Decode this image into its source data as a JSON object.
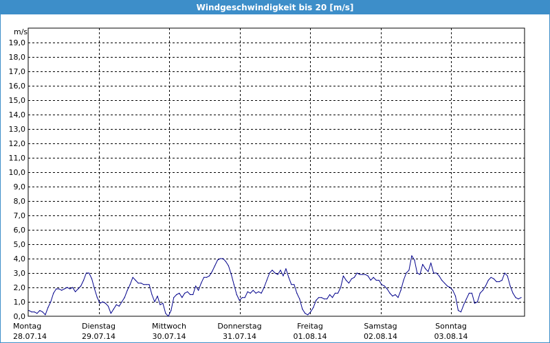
{
  "chart_data": {
    "type": "line",
    "title": "Windgeschwindigkeit bis 20 [m/s]",
    "ylabel": "m/s",
    "ylim": [
      0,
      20
    ],
    "y_ticks": [
      "0,0",
      "1,0",
      "2,0",
      "3,0",
      "4,0",
      "5,0",
      "6,0",
      "7,0",
      "8,0",
      "9,0",
      "10,0",
      "11,0",
      "12,0",
      "13,0",
      "14,0",
      "15,0",
      "16,0",
      "17,0",
      "18,0",
      "19,0"
    ],
    "x_ticks": [
      {
        "day": "Montag",
        "date": "28.07.14"
      },
      {
        "day": "Dienstag",
        "date": "29.07.14"
      },
      {
        "day": "Mittwoch",
        "date": "30.07.14"
      },
      {
        "day": "Donnerstag",
        "date": "31.07.14"
      },
      {
        "day": "Freitag",
        "date": "01.08.14"
      },
      {
        "day": "Samstag",
        "date": "02.08.14"
      },
      {
        "day": "Sonntag",
        "date": "03.08.14"
      }
    ],
    "grid": true,
    "line_color": "#00008b",
    "series": [
      {
        "values": [
          0.4,
          0.3,
          0.3,
          0.2,
          0.4,
          0.3,
          0.1,
          0.6,
          1.0,
          1.6,
          1.9,
          1.9,
          1.8,
          1.9,
          2.0,
          1.9,
          2.0,
          1.7,
          1.9,
          2.1,
          2.5,
          3.0,
          3.0,
          2.6,
          1.9,
          1.3,
          0.9,
          1.0,
          0.9,
          0.7,
          0.2,
          0.5,
          0.8,
          0.7,
          1.0,
          1.3,
          1.8,
          2.2,
          2.7,
          2.5,
          2.3,
          2.3,
          2.2,
          2.2,
          2.2,
          1.5,
          1.0,
          1.4,
          0.8,
          0.9,
          0.2,
          0.0,
          0.4,
          1.3,
          1.5,
          1.6,
          1.3,
          1.6,
          1.7,
          1.5,
          1.5,
          2.1,
          1.8,
          2.3,
          2.7,
          2.7,
          2.8,
          3.1,
          3.5,
          3.9,
          4.0,
          4.0,
          3.8,
          3.5,
          2.9,
          2.2,
          1.5,
          1.1,
          1.3,
          1.3,
          1.7,
          1.6,
          1.8,
          1.6,
          1.7,
          1.6,
          2.0,
          2.5,
          3.0,
          3.2,
          3.0,
          2.9,
          3.2,
          2.8,
          3.3,
          2.7,
          2.2,
          2.2,
          1.6,
          1.2,
          0.5,
          0.2,
          0.1,
          0.3,
          0.6,
          1.1,
          1.3,
          1.3,
          1.2,
          1.2,
          1.5,
          1.3,
          1.6,
          1.6,
          2.0,
          2.8,
          2.5,
          2.3,
          2.6,
          2.7,
          3.0,
          2.9,
          2.9,
          2.9,
          2.8,
          2.5,
          2.7,
          2.5,
          2.5,
          2.2,
          2.1,
          1.9,
          1.6,
          1.4,
          1.5,
          1.3,
          1.8,
          2.5,
          3.0,
          3.2,
          4.2,
          3.9,
          3.0,
          2.9,
          3.6,
          3.3,
          3.1,
          3.7,
          3.0,
          3.0,
          2.8,
          2.5,
          2.3,
          2.1,
          2.0,
          1.8,
          1.4,
          0.4,
          0.3,
          0.8,
          1.2,
          1.6,
          1.6,
          0.9,
          1.0,
          1.6,
          1.8,
          2.1,
          2.5,
          2.7,
          2.6,
          2.4,
          2.4,
          2.5,
          3.0,
          2.8,
          2.1,
          1.6,
          1.3,
          1.2,
          1.3
        ]
      }
    ]
  }
}
